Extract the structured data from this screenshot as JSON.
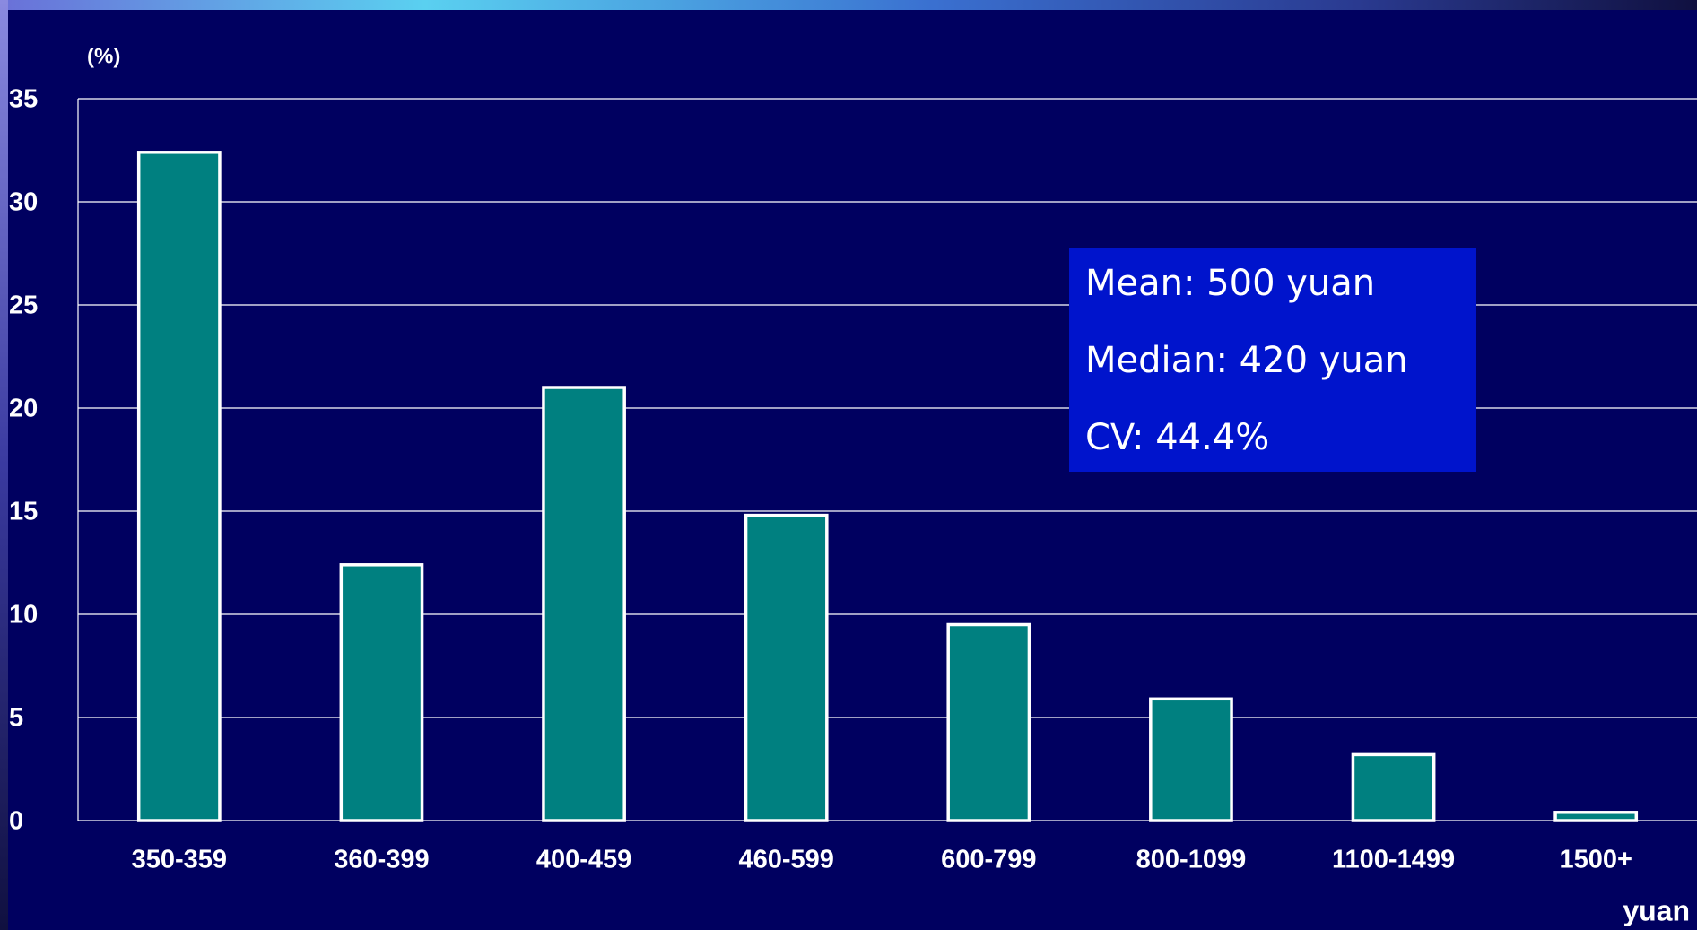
{
  "chart_data": {
    "type": "bar",
    "y_label": "(%)",
    "x_label": "yuan",
    "categories": [
      "350-359",
      "360-399",
      "400-459",
      "460-599",
      "600-799",
      "800-1099",
      "1100-1499",
      "1500+"
    ],
    "values": [
      32.4,
      12.4,
      21.0,
      14.8,
      9.5,
      5.9,
      3.2,
      0.4
    ],
    "color": "#008080",
    "ylim": [
      0,
      35
    ],
    "yticks": [
      0,
      5,
      10,
      15,
      20,
      25,
      30,
      35
    ],
    "grid": true,
    "annotations": [
      "Mean: 500 yuan",
      "Median: 420 yuan",
      "CV: 44.4%"
    ]
  }
}
